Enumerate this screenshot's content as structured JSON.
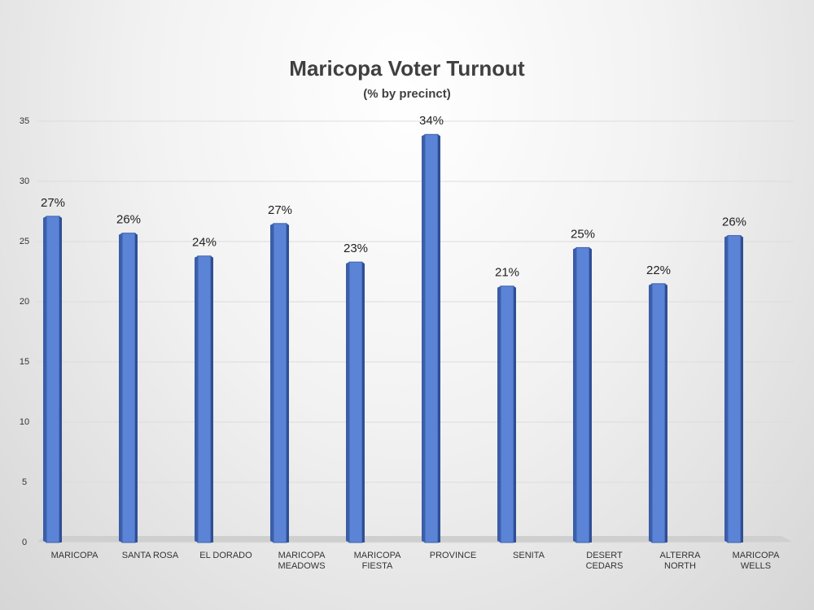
{
  "chart_data": {
    "type": "bar",
    "title": "Maricopa Voter Turnout",
    "subtitle": "(% by precinct)",
    "categories": [
      "MARICOPA",
      "SANTA ROSA",
      "EL DORADO",
      "MARICOPA MEADOWS",
      "MARICOPA FIESTA",
      "PROVINCE",
      "SENITA",
      "DESERT CEDARS",
      "ALTERRA NORTH",
      "MARICOPA WELLS"
    ],
    "values": [
      27.1,
      25.7,
      23.8,
      26.5,
      23.3,
      33.9,
      21.3,
      24.5,
      21.5,
      25.5
    ],
    "value_labels": [
      "27%",
      "26%",
      "24%",
      "27%",
      "23%",
      "34%",
      "21%",
      "25%",
      "22%",
      "26%"
    ],
    "color": "#5b83d6",
    "ylim": [
      0,
      35
    ],
    "yticks": [
      0,
      5,
      10,
      15,
      20,
      25,
      30,
      35
    ],
    "grid": true
  }
}
